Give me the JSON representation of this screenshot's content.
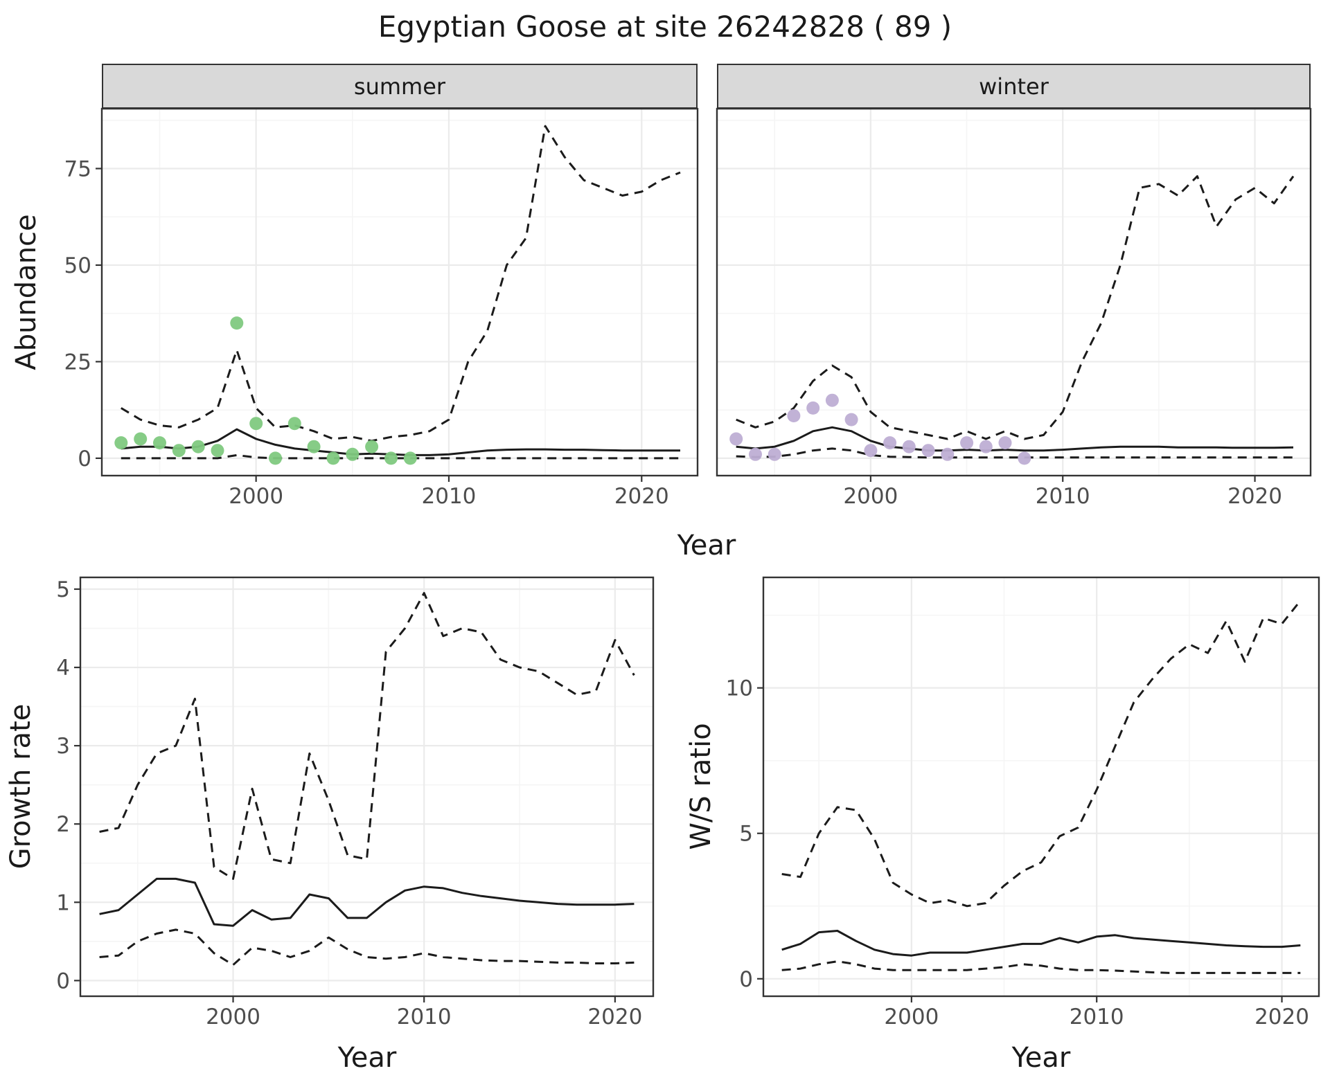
{
  "title": "Egyptian Goose at site 26242828 ( 89 )",
  "axis_labels": {
    "abundance": "Abundance",
    "year": "Year",
    "growth_rate": "Growth rate",
    "ws_ratio": "W/S ratio"
  },
  "facets": {
    "summer": "summer",
    "winter": "winter"
  },
  "colors": {
    "line": "#1b1b1b",
    "border": "#333333",
    "grid_major": "#ebebeb",
    "grid_minor": "#f5f5f5",
    "axis_text": "#4d4d4d",
    "strip_bg": "#d9d9d9",
    "summer_points": "#7fc97f",
    "winter_points": "#beaed4"
  },
  "chart_data": [
    {
      "id": "abundance-summer",
      "type": "line",
      "facet": "summer",
      "xlabel": "Year",
      "ylabel": "Abundance",
      "xlim": [
        1992,
        2022.9
      ],
      "ylim": [
        -4.5,
        90.5
      ],
      "xticks": [
        2000,
        2010,
        2020
      ],
      "xticks_minor": [
        1995,
        2005,
        2015
      ],
      "yticks": [
        0,
        25,
        50,
        75
      ],
      "yticks_minor": [
        12.5,
        37.5,
        62.5,
        87.5
      ],
      "x": [
        1993,
        1994,
        1995,
        1996,
        1997,
        1998,
        1999,
        2000,
        2001,
        2002,
        2003,
        2004,
        2005,
        2006,
        2007,
        2008,
        2009,
        2010,
        2011,
        2012,
        2013,
        2014,
        2015,
        2016,
        2017,
        2018,
        2019,
        2020,
        2021,
        2022
      ],
      "series": [
        {
          "name": "fitted-mean",
          "style": "solid",
          "values": [
            2.5,
            3,
            3,
            2.5,
            3,
            4.5,
            7.5,
            5,
            3.5,
            2.5,
            2,
            1.5,
            1,
            1.2,
            1,
            0.8,
            0.8,
            1,
            1.5,
            2,
            2.2,
            2.3,
            2.3,
            2.2,
            2.2,
            2.1,
            2,
            2,
            2,
            2
          ]
        },
        {
          "name": "upper-ci",
          "style": "dashed",
          "values": [
            13,
            10,
            8.5,
            8,
            10,
            13,
            28,
            13,
            8,
            8.5,
            7,
            5,
            5.5,
            4.5,
            5.5,
            6,
            7,
            10,
            25,
            33,
            50,
            57,
            86,
            78,
            72,
            70,
            68,
            69,
            72,
            74
          ]
        },
        {
          "name": "lower-ci",
          "style": "dashed",
          "values": [
            0,
            0,
            0,
            0,
            0,
            0,
            0.8,
            0.2,
            0,
            0,
            0,
            0,
            0,
            0,
            0,
            0,
            0,
            0,
            0,
            0,
            0,
            0,
            0,
            0,
            0,
            0,
            0,
            0,
            0,
            0
          ]
        }
      ],
      "points": {
        "name": "observed-count",
        "color_key": "summer_points",
        "x": [
          1993,
          1994,
          1995,
          1996,
          1997,
          1998,
          1999,
          2000,
          2001,
          2002,
          2003,
          2004,
          2005,
          2006,
          2007,
          2008
        ],
        "y": [
          4,
          5,
          4,
          2,
          3,
          2,
          35,
          9,
          0,
          9,
          3,
          0,
          1,
          3,
          0,
          0
        ]
      }
    },
    {
      "id": "abundance-winter",
      "type": "line",
      "facet": "winter",
      "xlabel": "Year",
      "ylabel": "Abundance",
      "xlim": [
        1992,
        2022.9
      ],
      "ylim": [
        -4.5,
        90.5
      ],
      "xticks": [
        2000,
        2010,
        2020
      ],
      "xticks_minor": [
        1995,
        2005,
        2015
      ],
      "yticks": [
        0,
        25,
        50,
        75
      ],
      "yticks_minor": [
        12.5,
        37.5,
        62.5,
        87.5
      ],
      "x": [
        1993,
        1994,
        1995,
        1996,
        1997,
        1998,
        1999,
        2000,
        2001,
        2002,
        2003,
        2004,
        2005,
        2006,
        2007,
        2008,
        2009,
        2010,
        2011,
        2012,
        2013,
        2014,
        2015,
        2016,
        2017,
        2018,
        2019,
        2020,
        2021,
        2022
      ],
      "series": [
        {
          "name": "fitted-mean",
          "style": "solid",
          "values": [
            3,
            2.5,
            3,
            4.5,
            7,
            8,
            7,
            4.5,
            3,
            2.5,
            2,
            2,
            2.2,
            2,
            2.2,
            2,
            2,
            2.2,
            2.5,
            2.8,
            3,
            3,
            3,
            2.8,
            2.8,
            2.8,
            2.7,
            2.7,
            2.7,
            2.8
          ]
        },
        {
          "name": "upper-ci",
          "style": "dashed",
          "values": [
            10,
            8,
            9.5,
            13,
            20,
            24,
            21,
            12,
            8,
            7,
            6,
            5,
            7,
            5,
            7,
            5,
            6,
            12,
            25,
            35,
            50,
            70,
            71,
            68,
            73,
            60,
            67,
            70,
            66,
            73
          ]
        },
        {
          "name": "lower-ci",
          "style": "dashed",
          "values": [
            0.5,
            0.3,
            0.4,
            1,
            2,
            2.5,
            2,
            0.8,
            0.4,
            0.3,
            0.2,
            0.2,
            0.2,
            0.2,
            0.2,
            0.2,
            0.2,
            0.2,
            0.2,
            0.2,
            0.2,
            0.2,
            0.2,
            0.2,
            0.2,
            0.2,
            0.2,
            0.2,
            0.2,
            0.2
          ]
        }
      ],
      "points": {
        "name": "observed-count",
        "color_key": "winter_points",
        "x": [
          1993,
          1994,
          1995,
          1996,
          1997,
          1998,
          1999,
          2000,
          2001,
          2002,
          2003,
          2004,
          2005,
          2006,
          2007,
          2008
        ],
        "y": [
          5,
          1,
          1,
          11,
          13,
          15,
          10,
          2,
          4,
          3,
          2,
          1,
          4,
          3,
          4,
          0
        ]
      }
    },
    {
      "id": "growth-rate",
      "type": "line",
      "xlabel": "Year",
      "ylabel": "Growth rate",
      "xlim": [
        1992,
        2022
      ],
      "ylim": [
        -0.2,
        5.15
      ],
      "xticks": [
        2000,
        2010,
        2020
      ],
      "xticks_minor": [
        1995,
        2005,
        2015
      ],
      "yticks": [
        0,
        1,
        2,
        3,
        4,
        5
      ],
      "yticks_minor": [
        0.5,
        1.5,
        2.5,
        3.5,
        4.5
      ],
      "x": [
        1993,
        1994,
        1995,
        1996,
        1997,
        1998,
        1999,
        2000,
        2001,
        2002,
        2003,
        2004,
        2005,
        2006,
        2007,
        2008,
        2009,
        2010,
        2011,
        2012,
        2013,
        2014,
        2015,
        2016,
        2017,
        2018,
        2019,
        2020,
        2021
      ],
      "series": [
        {
          "name": "fitted-mean",
          "style": "solid",
          "values": [
            0.85,
            0.9,
            1.1,
            1.3,
            1.3,
            1.25,
            0.72,
            0.7,
            0.9,
            0.78,
            0.8,
            1.1,
            1.05,
            0.8,
            0.8,
            1.0,
            1.15,
            1.2,
            1.18,
            1.12,
            1.08,
            1.05,
            1.02,
            1.0,
            0.98,
            0.97,
            0.97,
            0.97,
            0.98
          ]
        },
        {
          "name": "upper-ci",
          "style": "dashed",
          "values": [
            1.9,
            1.95,
            2.5,
            2.9,
            3.0,
            3.6,
            1.45,
            1.3,
            2.45,
            1.55,
            1.5,
            2.9,
            2.3,
            1.6,
            1.55,
            4.2,
            4.5,
            4.95,
            4.4,
            4.5,
            4.45,
            4.1,
            4.0,
            3.95,
            3.8,
            3.65,
            3.7,
            4.35,
            3.9
          ]
        },
        {
          "name": "lower-ci",
          "style": "dashed",
          "values": [
            0.3,
            0.32,
            0.5,
            0.6,
            0.65,
            0.6,
            0.35,
            0.2,
            0.42,
            0.38,
            0.3,
            0.38,
            0.55,
            0.4,
            0.3,
            0.28,
            0.3,
            0.35,
            0.3,
            0.28,
            0.26,
            0.25,
            0.25,
            0.24,
            0.23,
            0.23,
            0.22,
            0.22,
            0.23
          ]
        }
      ]
    },
    {
      "id": "ws-ratio",
      "type": "line",
      "xlabel": "Year",
      "ylabel": "W/S ratio",
      "xlim": [
        1992,
        2022
      ],
      "ylim": [
        -0.6,
        13.8
      ],
      "xticks": [
        2000,
        2010,
        2020
      ],
      "xticks_minor": [
        1995,
        2005,
        2015
      ],
      "yticks": [
        0,
        5,
        10
      ],
      "yticks_minor": [
        2.5,
        7.5,
        12.5
      ],
      "x": [
        1993,
        1994,
        1995,
        1996,
        1997,
        1998,
        1999,
        2000,
        2001,
        2002,
        2003,
        2004,
        2005,
        2006,
        2007,
        2008,
        2009,
        2010,
        2011,
        2012,
        2013,
        2014,
        2015,
        2016,
        2017,
        2018,
        2019,
        2020,
        2021
      ],
      "series": [
        {
          "name": "fitted-mean",
          "style": "solid",
          "values": [
            1.0,
            1.2,
            1.6,
            1.65,
            1.3,
            1.0,
            0.85,
            0.8,
            0.9,
            0.9,
            0.9,
            1.0,
            1.1,
            1.2,
            1.2,
            1.4,
            1.25,
            1.45,
            1.5,
            1.4,
            1.35,
            1.3,
            1.25,
            1.2,
            1.15,
            1.12,
            1.1,
            1.1,
            1.15
          ]
        },
        {
          "name": "upper-ci",
          "style": "dashed",
          "values": [
            3.6,
            3.5,
            5.0,
            5.9,
            5.8,
            4.8,
            3.3,
            2.9,
            2.6,
            2.7,
            2.5,
            2.6,
            3.2,
            3.7,
            4.0,
            4.9,
            5.2,
            6.5,
            8.0,
            9.5,
            10.3,
            11.0,
            11.5,
            11.2,
            12.3,
            10.9,
            12.4,
            12.2,
            13.0
          ]
        },
        {
          "name": "lower-ci",
          "style": "dashed",
          "values": [
            0.3,
            0.35,
            0.5,
            0.6,
            0.5,
            0.35,
            0.3,
            0.3,
            0.3,
            0.3,
            0.3,
            0.35,
            0.4,
            0.5,
            0.45,
            0.35,
            0.3,
            0.3,
            0.28,
            0.25,
            0.22,
            0.2,
            0.2,
            0.2,
            0.2,
            0.2,
            0.2,
            0.2,
            0.2
          ]
        }
      ]
    }
  ]
}
